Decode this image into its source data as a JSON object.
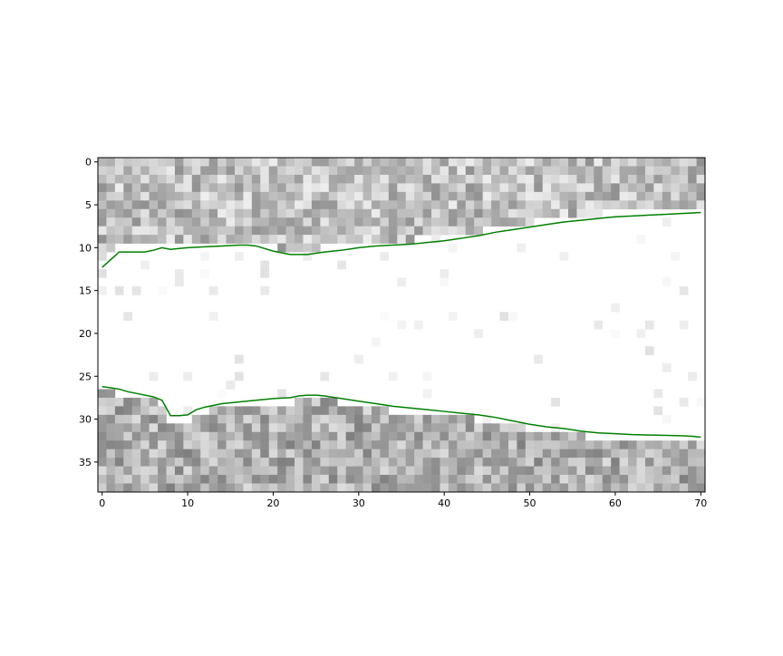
{
  "chart_data": {
    "type": "heatmap",
    "title": "",
    "xlabel": "",
    "ylabel": "",
    "xlim": [
      -0.5,
      70.5
    ],
    "ylim": [
      38.5,
      -0.5
    ],
    "y_inverted": true,
    "grid": false,
    "legend": "none",
    "colormap": "grayscale (white = low, gray = high)",
    "x_ticks": [
      0,
      10,
      20,
      30,
      40,
      50,
      60,
      70
    ],
    "y_ticks": [
      0,
      5,
      10,
      15,
      20,
      25,
      30,
      35
    ],
    "grid_size": {
      "cols": 71,
      "rows": 39
    },
    "band_description": "Textured gray noise above the upper line and below the lower line; mostly white region between them.",
    "line_color": "#008000",
    "series": [
      {
        "x": [
          0,
          2,
          4,
          5,
          6,
          7,
          8,
          9,
          10,
          12,
          14,
          16,
          17,
          18,
          20,
          22,
          24,
          26,
          28,
          30,
          32,
          34,
          36,
          38,
          40,
          42,
          44,
          46,
          48,
          50,
          52,
          54,
          56,
          58,
          60,
          62,
          64,
          66,
          68,
          70
        ],
        "y": [
          12.3,
          10.5,
          10.5,
          10.5,
          10.3,
          10.0,
          10.2,
          10.1,
          10.0,
          9.9,
          9.8,
          9.7,
          9.7,
          9.8,
          10.4,
          10.8,
          10.8,
          10.5,
          10.3,
          10.0,
          9.8,
          9.7,
          9.6,
          9.4,
          9.2,
          8.9,
          8.6,
          8.2,
          7.9,
          7.6,
          7.3,
          7.0,
          6.8,
          6.6,
          6.4,
          6.3,
          6.2,
          6.1,
          6.0,
          5.9
        ]
      },
      {
        "x": [
          0,
          2,
          3,
          4,
          6,
          7,
          8,
          9,
          10,
          11,
          12,
          14,
          16,
          18,
          20,
          22,
          23,
          24,
          25,
          26,
          28,
          30,
          32,
          34,
          36,
          38,
          40,
          42,
          44,
          46,
          48,
          50,
          52,
          54,
          56,
          58,
          60,
          62,
          64,
          66,
          68,
          69,
          70
        ],
        "y": [
          26.2,
          26.5,
          26.8,
          27.0,
          27.4,
          27.8,
          29.6,
          29.6,
          29.5,
          28.9,
          28.6,
          28.2,
          28.0,
          27.8,
          27.6,
          27.5,
          27.3,
          27.2,
          27.2,
          27.3,
          27.6,
          27.9,
          28.2,
          28.5,
          28.7,
          28.9,
          29.1,
          29.3,
          29.5,
          29.8,
          30.2,
          30.6,
          30.9,
          31.1,
          31.4,
          31.6,
          31.7,
          31.8,
          31.85,
          31.9,
          31.95,
          32.0,
          32.1
        ]
      }
    ]
  }
}
